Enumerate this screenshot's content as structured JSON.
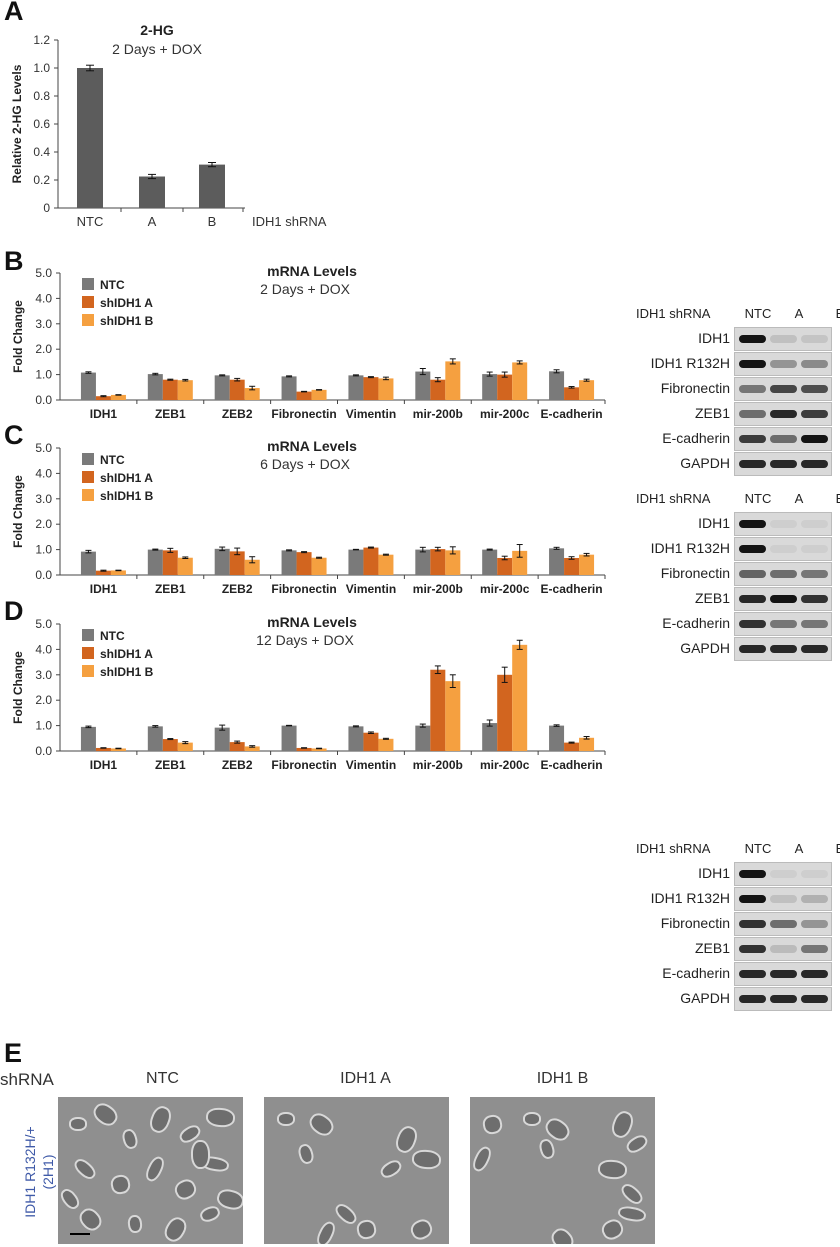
{
  "panels": {
    "a": "A",
    "b": "B",
    "c": "C",
    "d": "D",
    "e": "E"
  },
  "colors": {
    "ntc": "#7a7a7a",
    "shA": "#d2651f",
    "shB": "#f5a040",
    "bar_a": "#5c5c5c",
    "rowlabel": "#3f5aa8"
  },
  "chart_data": [
    {
      "id": "A",
      "type": "bar",
      "title": "2-HG",
      "subtitle": "2 Days + DOX",
      "ylabel": "Relative 2-HG Levels",
      "xlabel": "IDH1 shRNA",
      "categories": [
        "NTC",
        "A",
        "B"
      ],
      "values": [
        1.0,
        0.225,
        0.31
      ],
      "errors": [
        0.02,
        0.015,
        0.015
      ],
      "ylim": [
        0,
        1.2
      ],
      "yticks": [
        "0",
        "0.2",
        "0.4",
        "0.6",
        "0.8",
        "1.0",
        "1.2"
      ],
      "legend": []
    },
    {
      "id": "B",
      "type": "bar",
      "title": "mRNA Levels",
      "subtitle": "2 Days + DOX",
      "ylabel": "Fold Change",
      "categories": [
        "IDH1",
        "ZEB1",
        "ZEB2",
        "Fibronectin",
        "Vimentin",
        "mir-200b",
        "mir-200c",
        "E-cadherin"
      ],
      "series": [
        {
          "name": "NTC",
          "values": [
            1.08,
            1.02,
            0.97,
            0.93,
            0.97,
            1.12,
            1.02,
            1.13
          ],
          "errors": [
            0.03,
            0.03,
            0.02,
            0.02,
            0.02,
            0.12,
            0.08,
            0.06
          ]
        },
        {
          "name": "shIDH1 A",
          "values": [
            0.15,
            0.8,
            0.8,
            0.33,
            0.9,
            0.8,
            1.0,
            0.5
          ],
          "errors": [
            0.02,
            0.02,
            0.05,
            0.01,
            0.02,
            0.08,
            0.1,
            0.03
          ]
        },
        {
          "name": "shIDH1 B",
          "values": [
            0.2,
            0.78,
            0.47,
            0.4,
            0.85,
            1.52,
            1.48,
            0.78
          ],
          "errors": [
            0.01,
            0.03,
            0.07,
            0.01,
            0.05,
            0.1,
            0.06,
            0.04
          ]
        }
      ],
      "ylim": [
        0,
        5
      ],
      "yticks": [
        "0.0",
        "1.0",
        "2.0",
        "3.0",
        "4.0",
        "5.0"
      ],
      "legend": [
        "NTC",
        "shIDH1 A",
        "shIDH1 B"
      ]
    },
    {
      "id": "C",
      "type": "bar",
      "title": "mRNA Levels",
      "subtitle": "6 Days + DOX",
      "ylabel": "Fold Change",
      "categories": [
        "IDH1",
        "ZEB1",
        "ZEB2",
        "Fibronectin",
        "Vimentin",
        "mir-200b",
        "mir-200c",
        "E-cadherin"
      ],
      "series": [
        {
          "name": "NTC",
          "values": [
            0.92,
            1.0,
            1.03,
            0.97,
            1.0,
            1.0,
            1.0,
            1.05
          ],
          "errors": [
            0.05,
            0.02,
            0.07,
            0.02,
            0.01,
            0.09,
            0.02,
            0.04
          ]
        },
        {
          "name": "shIDH1 A",
          "values": [
            0.17,
            0.97,
            0.93,
            0.9,
            1.08,
            1.02,
            0.67,
            0.67
          ],
          "errors": [
            0.02,
            0.08,
            0.13,
            0.02,
            0.02,
            0.07,
            0.07,
            0.05
          ]
        },
        {
          "name": "shIDH1 B",
          "values": [
            0.18,
            0.68,
            0.6,
            0.68,
            0.8,
            0.97,
            0.95,
            0.8
          ],
          "errors": [
            0.01,
            0.03,
            0.12,
            0.02,
            0.02,
            0.14,
            0.25,
            0.05
          ]
        }
      ],
      "ylim": [
        0,
        5
      ],
      "yticks": [
        "0.0",
        "1.0",
        "2.0",
        "3.0",
        "4.0",
        "5.0"
      ],
      "legend": [
        "NTC",
        "shIDH1 A",
        "shIDH1 B"
      ]
    },
    {
      "id": "D",
      "type": "bar",
      "title": "mRNA Levels",
      "subtitle": "12 Days + DOX",
      "ylabel": "Fold Change",
      "categories": [
        "IDH1",
        "ZEB1",
        "ZEB2",
        "Fibronectin",
        "Vimentin",
        "mir-200b",
        "mir-200c",
        "E-cadherin"
      ],
      "series": [
        {
          "name": "NTC",
          "values": [
            0.95,
            0.97,
            0.92,
            1.0,
            0.97,
            1.0,
            1.1,
            1.0
          ],
          "errors": [
            0.03,
            0.03,
            0.1,
            0.01,
            0.02,
            0.06,
            0.12,
            0.03
          ]
        },
        {
          "name": "shIDH1 A",
          "values": [
            0.12,
            0.47,
            0.35,
            0.12,
            0.72,
            3.2,
            3.0,
            0.33
          ],
          "errors": [
            0.01,
            0.02,
            0.04,
            0.01,
            0.03,
            0.15,
            0.3,
            0.02
          ]
        },
        {
          "name": "shIDH1 B",
          "values": [
            0.1,
            0.33,
            0.18,
            0.1,
            0.48,
            2.75,
            4.18,
            0.52
          ],
          "errors": [
            0.01,
            0.04,
            0.03,
            0.01,
            0.02,
            0.25,
            0.18,
            0.05
          ]
        }
      ],
      "ylim": [
        0,
        5
      ],
      "yticks": [
        "0.0",
        "1.0",
        "2.0",
        "3.0",
        "4.0",
        "5.0"
      ],
      "legend": [
        "NTC",
        "shIDH1 A",
        "shIDH1 B"
      ]
    }
  ],
  "blots": {
    "header_label": "IDH1 shRNA",
    "lanes": [
      "NTC",
      "A",
      "B"
    ],
    "rows": [
      "IDH1",
      "IDH1 R132H",
      "Fibronectin",
      "ZEB1",
      "E-cadherin",
      "GAPDH"
    ]
  },
  "micrographs": {
    "row_header": "shRNA",
    "titles": [
      "NTC",
      "IDH1 A",
      "IDH1  B"
    ],
    "row_label_line1": "IDH1 R132H/+",
    "row_label_line2": "(2H1)"
  }
}
